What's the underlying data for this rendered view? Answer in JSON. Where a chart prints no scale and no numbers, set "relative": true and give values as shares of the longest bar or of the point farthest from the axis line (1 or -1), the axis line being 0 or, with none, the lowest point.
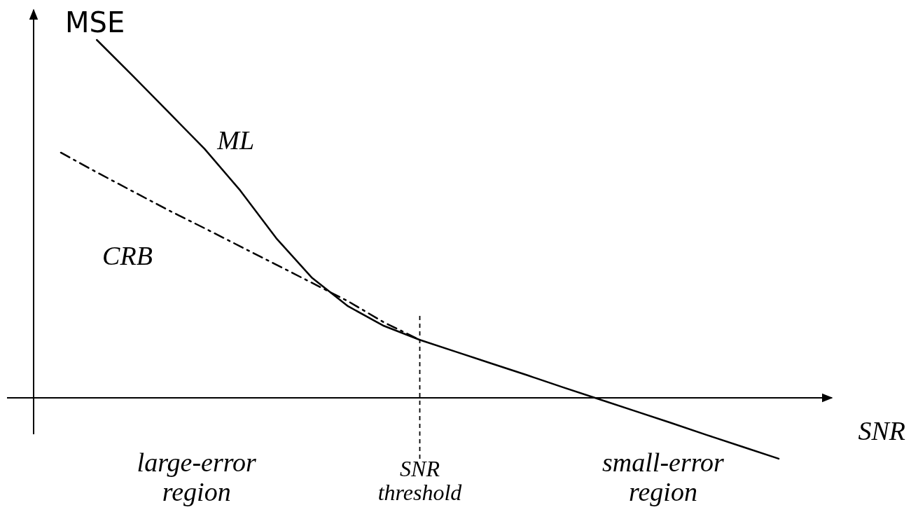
{
  "chart_data": {
    "type": "line",
    "relative": true,
    "xlabel": "SNR",
    "ylabel": "MSE",
    "marker": "none",
    "categories": [
      null,
      null,
      null,
      null,
      null,
      null,
      null,
      null,
      null,
      null,
      null,
      null,
      null,
      null,
      null,
      null,
      null,
      null,
      null,
      null,
      null
    ],
    "series": [
      {
        "name": "ML",
        "color": "#000000",
        "line_style": "solid",
        "values": [
          null,
          1.0,
          0.9,
          0.798,
          0.696,
          0.579,
          0.446,
          0.335,
          0.256,
          0.201,
          0.162,
          0.129,
          0.096,
          0.063,
          0.029,
          -0.004,
          -0.037,
          -0.07,
          -0.104,
          -0.137,
          -0.17
        ]
      },
      {
        "name": "CRB",
        "color": "#000000",
        "line_style": "dashed",
        "values": [
          0.685,
          0.63,
          0.577,
          0.524,
          0.474,
          0.423,
          0.372,
          0.321,
          0.27,
          0.211,
          0.162,
          null,
          null,
          null,
          null,
          null,
          null,
          null,
          null,
          null,
          null
        ]
      }
    ],
    "annotations": [
      "large-error region",
      "SNR threshold",
      "small-error region"
    ]
  }
}
